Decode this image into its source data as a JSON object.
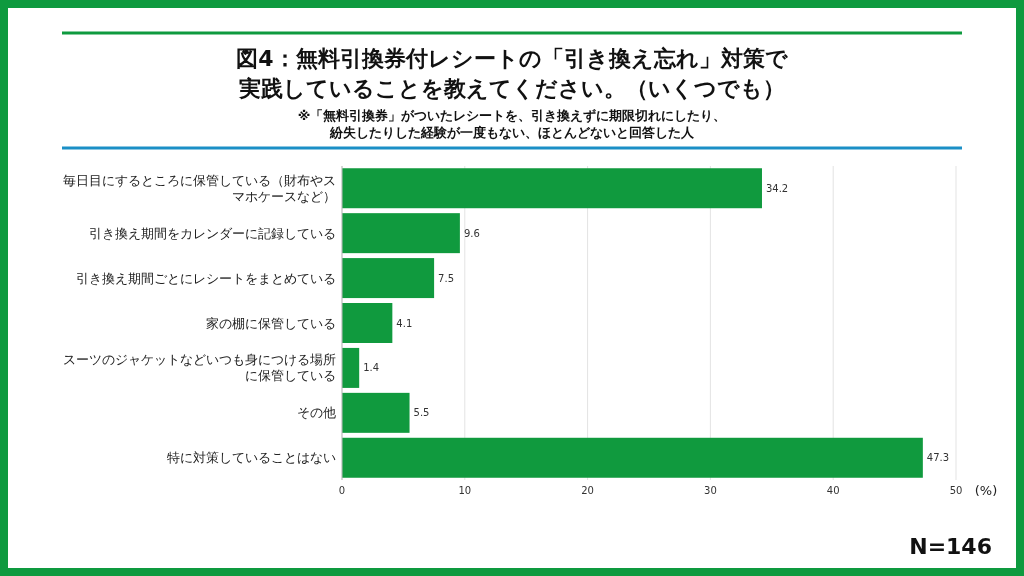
{
  "chart_data": {
    "type": "bar",
    "orientation": "horizontal",
    "title": "図4：無料引換券付レシートの「引き換え忘れ」対策で実践していることを教えてください。（いくつでも）",
    "subtitle": "※「無料引換券」がついたレシートを、引き換えずに期限切れにしたり、紛失したりした経験が一度もない、ほとんどないと回答した人",
    "categories": [
      "毎日目にするところに保管している（財布やスマホケースなど）",
      "引き換え期間をカレンダーに記録している",
      "引き換え期間ごとにレシートをまとめている",
      "家の棚に保管している",
      "スーツのジャケットなどいつも身につける場所に保管している",
      "その他",
      "特に対策していることはない"
    ],
    "values": [
      34.2,
      9.6,
      7.5,
      4.1,
      1.4,
      5.5,
      47.3
    ],
    "color": "#109a3e",
    "xlim": [
      0,
      50
    ],
    "xticks": [
      0,
      10,
      20,
      30,
      40,
      50
    ],
    "xlabel": "(%)",
    "grid": "x",
    "data_labels": true,
    "annotations": [
      "N=146"
    ]
  }
}
